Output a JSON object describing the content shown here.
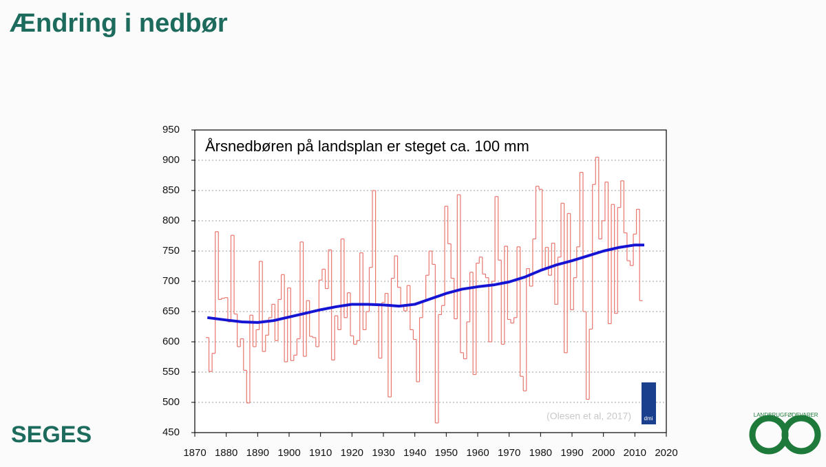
{
  "slide": {
    "title": "Ændring i nedbør",
    "logo": "SEGES",
    "logo_right_top": "LANDBRUG",
    "logo_right_bottom": "FØDEVARER",
    "dmi": "dmi"
  },
  "chart_data": {
    "type": "line",
    "annotation": "Årsnedbøren på landsplan er steget ca. 100 mm",
    "source": "(Olesen et al, 2017)",
    "xlim": [
      1870,
      2020
    ],
    "xticks": [
      1870,
      1880,
      1890,
      1900,
      1910,
      1920,
      1930,
      1940,
      1950,
      1960,
      1970,
      1980,
      1990,
      2000,
      2010,
      2020
    ],
    "ylim": [
      450,
      950
    ],
    "yticks": [
      450,
      500,
      550,
      600,
      650,
      700,
      750,
      800,
      850,
      900,
      950
    ],
    "grid": true,
    "series": [
      {
        "style": "step",
        "color": "#e8766e",
        "x": [
          1874,
          1875,
          1876,
          1877,
          1878,
          1879,
          1880,
          1881,
          1882,
          1883,
          1884,
          1885,
          1886,
          1887,
          1888,
          1889,
          1890,
          1891,
          1892,
          1893,
          1894,
          1895,
          1896,
          1897,
          1898,
          1899,
          1900,
          1901,
          1902,
          1903,
          1904,
          1905,
          1906,
          1907,
          1908,
          1909,
          1910,
          1911,
          1912,
          1913,
          1914,
          1915,
          1916,
          1917,
          1918,
          1919,
          1920,
          1921,
          1922,
          1923,
          1924,
          1925,
          1926,
          1927,
          1928,
          1929,
          1930,
          1931,
          1932,
          1933,
          1934,
          1935,
          1936,
          1937,
          1938,
          1939,
          1940,
          1941,
          1942,
          1943,
          1944,
          1945,
          1946,
          1947,
          1948,
          1949,
          1950,
          1951,
          1952,
          1953,
          1954,
          1955,
          1956,
          1957,
          1958,
          1959,
          1960,
          1961,
          1962,
          1963,
          1964,
          1965,
          1966,
          1967,
          1968,
          1969,
          1970,
          1971,
          1972,
          1973,
          1974,
          1975,
          1976,
          1977,
          1978,
          1979,
          1980,
          1981,
          1982,
          1983,
          1984,
          1985,
          1986,
          1987,
          1988,
          1989,
          1990,
          1991,
          1992,
          1993,
          1994,
          1995,
          1996,
          1997,
          1998,
          1999,
          2000,
          2001,
          2002,
          2003,
          2004,
          2005,
          2006,
          2007,
          2008,
          2009,
          2010,
          2011,
          2012
        ],
        "values": [
          607,
          551,
          581,
          782,
          670,
          672,
          673,
          633,
          776,
          646,
          592,
          605,
          553,
          499,
          644,
          592,
          620,
          733,
          584,
          611,
          640,
          662,
          602,
          670,
          711,
          567,
          689,
          569,
          578,
          605,
          765,
          576,
          668,
          609,
          607,
          592,
          702,
          720,
          688,
          752,
          570,
          643,
          620,
          770,
          640,
          681,
          610,
          596,
          602,
          747,
          620,
          650,
          723,
          850,
          660,
          573,
          665,
          680,
          509,
          705,
          742,
          690,
          660,
          651,
          693,
          620,
          604,
          534,
          640,
          668,
          710,
          750,
          728,
          466,
          645,
          660,
          824,
          762,
          705,
          638,
          843,
          582,
          572,
          633,
          715,
          546,
          730,
          740,
          712,
          706,
          600,
          700,
          840,
          735,
          596,
          758,
          637,
          631,
          640,
          757,
          543,
          519,
          721,
          692,
          770,
          857,
          852,
          720,
          756,
          710,
          763,
          662,
          740,
          829,
          582,
          812,
          653,
          706,
          757,
          880,
          650,
          505,
          621,
          860,
          905,
          770,
          800,
          864,
          630,
          827,
          647,
          822,
          866,
          780,
          734,
          726,
          778,
          819,
          668
        ]
      },
      {
        "style": "smooth",
        "color": "#1414d2",
        "x": [
          1874,
          1880,
          1885,
          1890,
          1895,
          1900,
          1905,
          1910,
          1915,
          1920,
          1925,
          1930,
          1935,
          1940,
          1945,
          1950,
          1955,
          1960,
          1965,
          1970,
          1975,
          1980,
          1985,
          1990,
          1995,
          2000,
          2005,
          2010,
          2013
        ],
        "values": [
          640,
          636,
          633,
          632,
          635,
          641,
          647,
          653,
          658,
          662,
          662,
          661,
          659,
          662,
          671,
          680,
          687,
          691,
          694,
          699,
          707,
          718,
          727,
          734,
          742,
          750,
          756,
          760,
          760
        ]
      }
    ]
  }
}
